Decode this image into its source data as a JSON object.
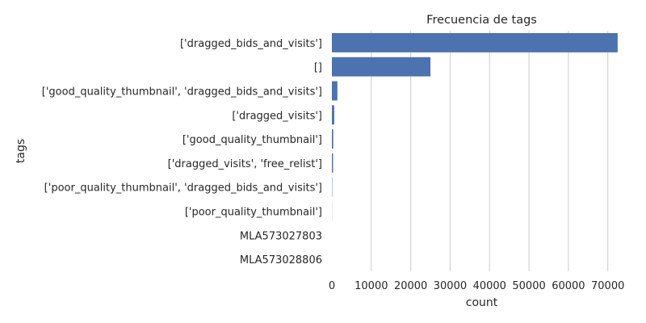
{
  "chart_data": {
    "type": "bar",
    "orientation": "horizontal",
    "title": "Frecuencia de tags",
    "xlabel": "count",
    "ylabel": "tags",
    "categories": [
      "['dragged_bids_and_visits']",
      "[]",
      "['good_quality_thumbnail', 'dragged_bids_and_visits']",
      "['dragged_visits']",
      "['good_quality_thumbnail']",
      "['dragged_visits', 'free_relist']",
      "['poor_quality_thumbnail', 'dragged_bids_and_visits']",
      "['poor_quality_thumbnail']",
      "MLA573027803",
      "MLA573028806"
    ],
    "values": [
      72500,
      25000,
      1400,
      600,
      350,
      300,
      80,
      30,
      1,
      1
    ],
    "xlim": [
      0,
      76000
    ],
    "xticks": [
      0,
      10000,
      20000,
      30000,
      40000,
      50000,
      60000,
      70000
    ],
    "xtick_labels": [
      "0",
      "10000",
      "20000",
      "30000",
      "40000",
      "50000",
      "60000",
      "70000"
    ],
    "grid": "vertical",
    "bar_color": "#4c72b0"
  }
}
